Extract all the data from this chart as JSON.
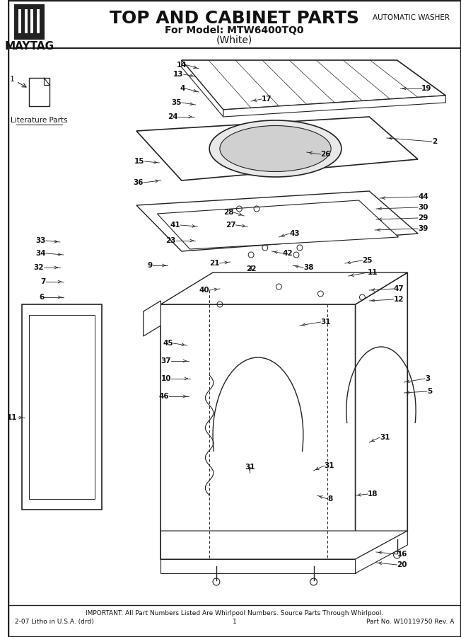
{
  "title": "TOP AND CABINET PARTS",
  "subtitle1": "For Model: MTW6400TQ0",
  "subtitle2": "(White)",
  "brand": "MAYTAG",
  "appliance_type": "AUTOMATIC WASHER",
  "footer_important": "IMPORTANT: All Part Numbers Listed Are Whirlpool Numbers. Source Parts Through Whirlpool.",
  "footer_left": "2-07 Litho in U.S.A. (drd)",
  "footer_center": "1",
  "footer_right": "Part No. W10119750 Rev. A",
  "lit_parts_label": "Literature Parts",
  "background_color": "#ffffff",
  "line_color": "#222222",
  "text_color": "#111111"
}
